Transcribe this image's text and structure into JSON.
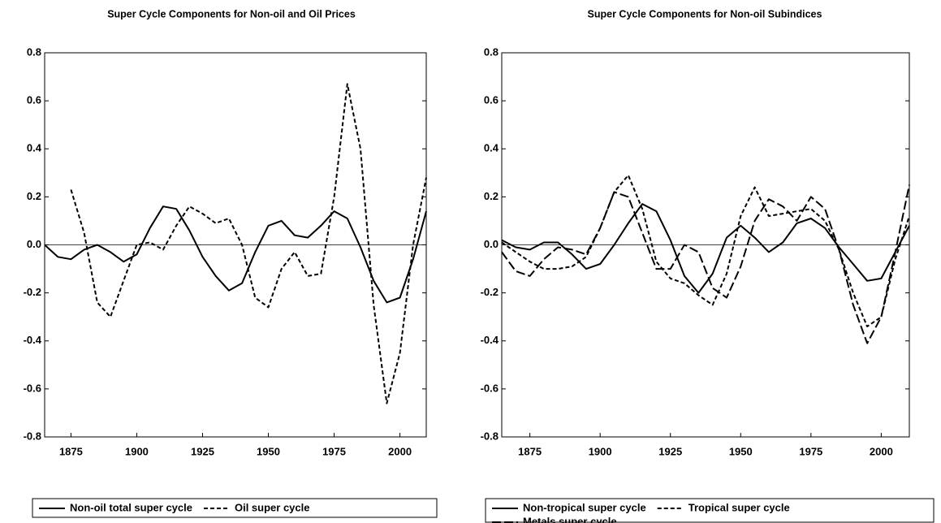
{
  "chart_data": [
    {
      "type": "line",
      "title": "Super Cycle Components for Non-oil and Oil Prices",
      "x": [
        1865,
        1870,
        1875,
        1880,
        1885,
        1890,
        1895,
        1900,
        1905,
        1910,
        1915,
        1920,
        1925,
        1930,
        1935,
        1940,
        1945,
        1950,
        1955,
        1960,
        1965,
        1970,
        1975,
        1980,
        1985,
        1990,
        1995,
        2000,
        2005,
        2010
      ],
      "xlim": [
        1865,
        2010
      ],
      "xticks": [
        1875,
        1900,
        1925,
        1950,
        1975,
        2000
      ],
      "ylim": [
        -0.8,
        0.8
      ],
      "yticks": [
        -0.8,
        -0.6,
        -0.4,
        -0.2,
        {
          "value": 0,
          "label": "0.0"
        },
        0.2,
        0.4,
        0.6,
        0.8
      ],
      "zero_line": true,
      "series": [
        {
          "name": "Non-oil total super cycle",
          "color": "#000000",
          "dash": "solid",
          "values": [
            0.0,
            -0.05,
            -0.06,
            -0.02,
            0.0,
            -0.03,
            -0.07,
            -0.04,
            0.07,
            0.16,
            0.15,
            0.06,
            -0.05,
            -0.13,
            -0.19,
            -0.16,
            -0.03,
            0.08,
            0.1,
            0.04,
            0.03,
            0.08,
            0.14,
            0.11,
            -0.01,
            -0.15,
            -0.24,
            -0.22,
            -0.06,
            0.14
          ]
        },
        {
          "name": "Oil super cycle",
          "color": "#000000",
          "dash": "short",
          "values": [
            null,
            null,
            0.23,
            0.05,
            -0.24,
            -0.3,
            -0.15,
            0.0,
            0.01,
            -0.02,
            0.08,
            0.16,
            0.13,
            0.09,
            0.11,
            0.0,
            -0.22,
            -0.26,
            -0.1,
            -0.03,
            -0.13,
            -0.12,
            0.2,
            0.67,
            0.4,
            -0.25,
            -0.66,
            -0.45,
            0.0,
            0.28
          ]
        }
      ]
    },
    {
      "type": "line",
      "title": "Super Cycle Components for Non-oil Subindices",
      "x": [
        1865,
        1870,
        1875,
        1880,
        1885,
        1890,
        1895,
        1900,
        1905,
        1910,
        1915,
        1920,
        1925,
        1930,
        1935,
        1940,
        1945,
        1950,
        1955,
        1960,
        1965,
        1970,
        1975,
        1980,
        1985,
        1990,
        1995,
        2000,
        2005,
        2010
      ],
      "xlim": [
        1865,
        2010
      ],
      "xticks": [
        1875,
        1900,
        1925,
        1950,
        1975,
        2000
      ],
      "ylim": [
        -0.8,
        0.8
      ],
      "yticks": [
        -0.8,
        -0.6,
        -0.4,
        -0.2,
        {
          "value": 0,
          "label": "0.0"
        },
        0.2,
        0.4,
        0.6,
        0.8
      ],
      "zero_line": true,
      "series": [
        {
          "name": "Non-tropical super cycle",
          "color": "#000000",
          "dash": "solid",
          "values": [
            0.02,
            -0.01,
            -0.02,
            0.01,
            0.01,
            -0.04,
            -0.1,
            -0.08,
            0.0,
            0.09,
            0.17,
            0.14,
            0.02,
            -0.13,
            -0.2,
            -0.12,
            0.03,
            0.08,
            0.03,
            -0.03,
            0.01,
            0.09,
            0.11,
            0.07,
            -0.01,
            -0.08,
            -0.15,
            -0.14,
            -0.03,
            0.08
          ]
        },
        {
          "name": "Tropical super cycle",
          "color": "#000000",
          "dash": "short",
          "values": [
            0.01,
            -0.03,
            -0.07,
            -0.1,
            -0.1,
            -0.09,
            -0.05,
            0.07,
            0.22,
            0.29,
            0.15,
            -0.07,
            -0.14,
            -0.16,
            -0.21,
            -0.25,
            -0.12,
            0.12,
            0.24,
            0.12,
            0.13,
            0.14,
            0.15,
            0.1,
            -0.02,
            -0.2,
            -0.34,
            -0.3,
            -0.06,
            0.12
          ]
        },
        {
          "name": "Metals super cycle",
          "color": "#000000",
          "dash": "long",
          "values": [
            -0.03,
            -0.11,
            -0.13,
            -0.06,
            -0.01,
            -0.02,
            -0.04,
            0.07,
            0.22,
            0.2,
            0.05,
            -0.1,
            -0.1,
            0.0,
            -0.03,
            -0.18,
            -0.22,
            -0.09,
            0.1,
            0.19,
            0.16,
            0.1,
            0.2,
            0.15,
            -0.02,
            -0.25,
            -0.41,
            -0.3,
            -0.03,
            0.25
          ]
        }
      ]
    }
  ]
}
